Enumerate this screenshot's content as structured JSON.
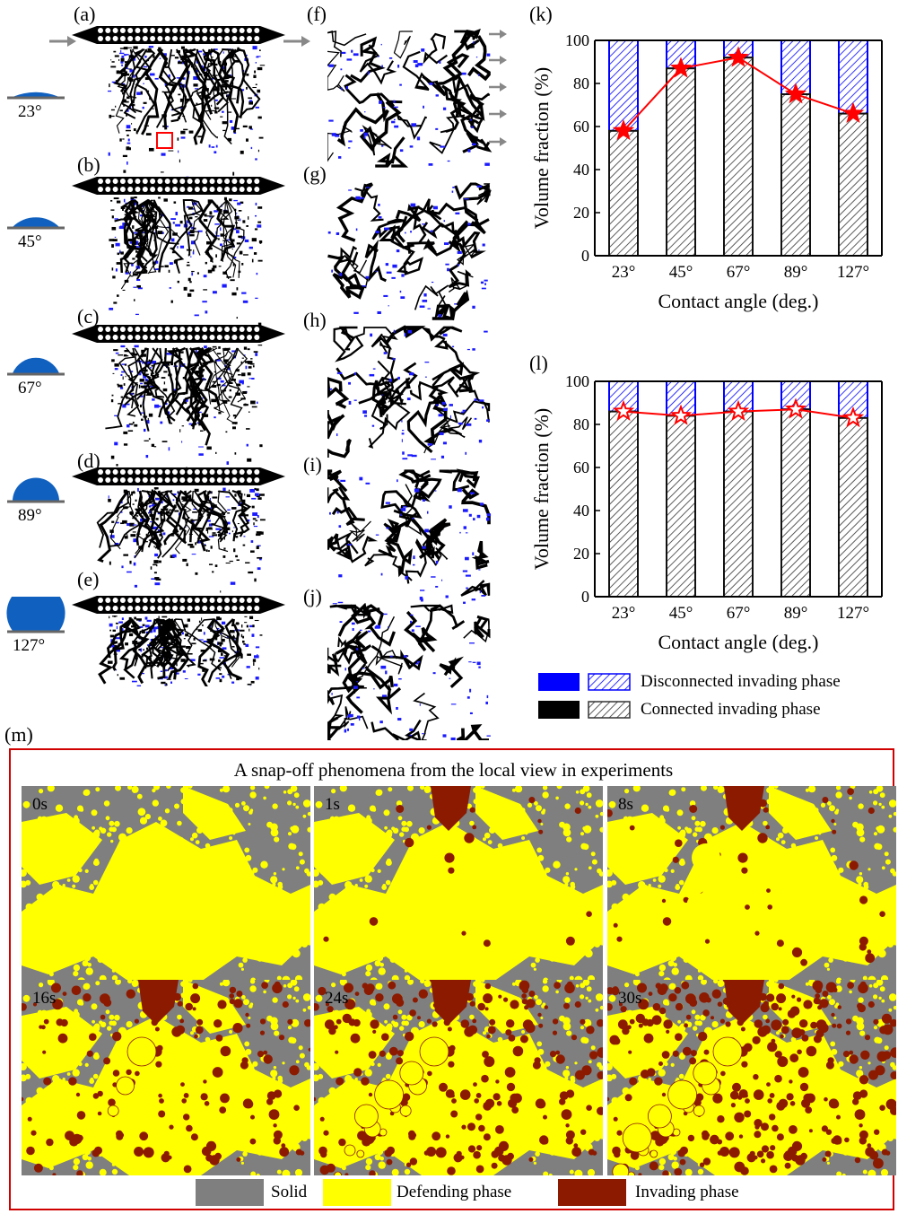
{
  "panels": {
    "a": "(a)",
    "b": "(b)",
    "c": "(c)",
    "d": "(d)",
    "e": "(e)",
    "f": "(f)",
    "g": "(g)",
    "h": "(h)",
    "i": "(i)",
    "j": "(j)",
    "k": "(k)",
    "l": "(l)",
    "m": "(m)"
  },
  "droplets": [
    {
      "angle": "23°",
      "deg": 23
    },
    {
      "angle": "45°",
      "deg": 45
    },
    {
      "angle": "67°",
      "deg": 67
    },
    {
      "angle": "89°",
      "deg": 89
    },
    {
      "angle": "127°",
      "deg": 127
    }
  ],
  "chart_data": [
    {
      "type": "bar",
      "panel": "(k)",
      "categories": [
        "23°",
        "45°",
        "67°",
        "89°",
        "127°"
      ],
      "series": [
        {
          "values": [
            58,
            87,
            92,
            75,
            66
          ]
        },
        {
          "values": [
            42,
            13,
            8,
            25,
            34
          ]
        }
      ],
      "line_values": [
        58,
        87,
        92,
        75,
        66
      ],
      "xlabel": "Contact angle (deg.)",
      "ylabel": "Volume fraction (%)",
      "ylim": [
        0,
        100
      ],
      "yticks": [
        "0",
        "20",
        "40",
        "60",
        "80",
        "100"
      ],
      "grid": false
    },
    {
      "type": "bar",
      "panel": "(l)",
      "categories": [
        "23°",
        "45°",
        "67°",
        "89°",
        "127°"
      ],
      "series": [
        {
          "values": [
            86,
            84,
            86,
            87,
            83
          ]
        },
        {
          "values": [
            14,
            16,
            14,
            13,
            17
          ]
        }
      ],
      "line_values": [
        86,
        84,
        86,
        87,
        83
      ],
      "xlabel": "Contact angle (deg.)",
      "ylabel": "Volume fraction (%)",
      "ylim": [
        0,
        100
      ],
      "yticks": [
        "0",
        "20",
        "40",
        "60",
        "80",
        "100"
      ],
      "grid": false
    }
  ],
  "legend": {
    "disconnected": "Disconnected invading phase",
    "connected": "Connected invading phase"
  },
  "snapoff": {
    "title": "A snap-off phenomena from the local view in experiments",
    "frames": [
      "0s",
      "1s",
      "8s",
      "16s",
      "24s",
      "30s"
    ],
    "legend": {
      "solid": "Solid",
      "defending": "Defending phase",
      "invading": "Invading phase"
    }
  },
  "colors": {
    "blue": "#0000ff",
    "black": "#000000",
    "red": "#ff0000",
    "solid": "#7f7f7f",
    "defending": "#ffff00",
    "invading": "#8b1a00",
    "frame": "#d00000"
  }
}
